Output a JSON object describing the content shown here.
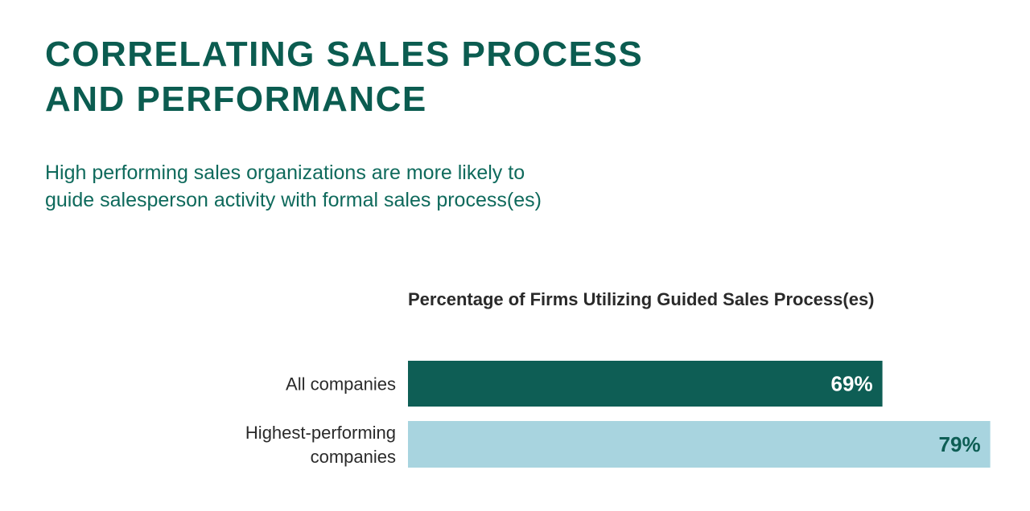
{
  "header": {
    "title_line1": "CORRELATING SALES PROCESS",
    "title_line2": "AND PERFORMANCE",
    "subtitle_line1": "High performing sales organizations are more likely to",
    "subtitle_line2": "guide salesperson activity with formal sales process(es)"
  },
  "chart_data": {
    "type": "bar",
    "orientation": "horizontal",
    "title": "Percentage of Firms Utilizing Guided Sales Process(es)",
    "categories": [
      [
        "All companies"
      ],
      [
        "Highest-performing",
        "companies"
      ]
    ],
    "values": [
      69,
      79
    ],
    "data_labels": [
      "69%",
      "79%"
    ],
    "colors": [
      "#0e5e55",
      "#a8d4df"
    ],
    "label_colors": [
      "#ffffff",
      "#0e5e55"
    ],
    "xlim": [
      25,
      80
    ],
    "grid": false,
    "xlabel": "",
    "ylabel": ""
  }
}
